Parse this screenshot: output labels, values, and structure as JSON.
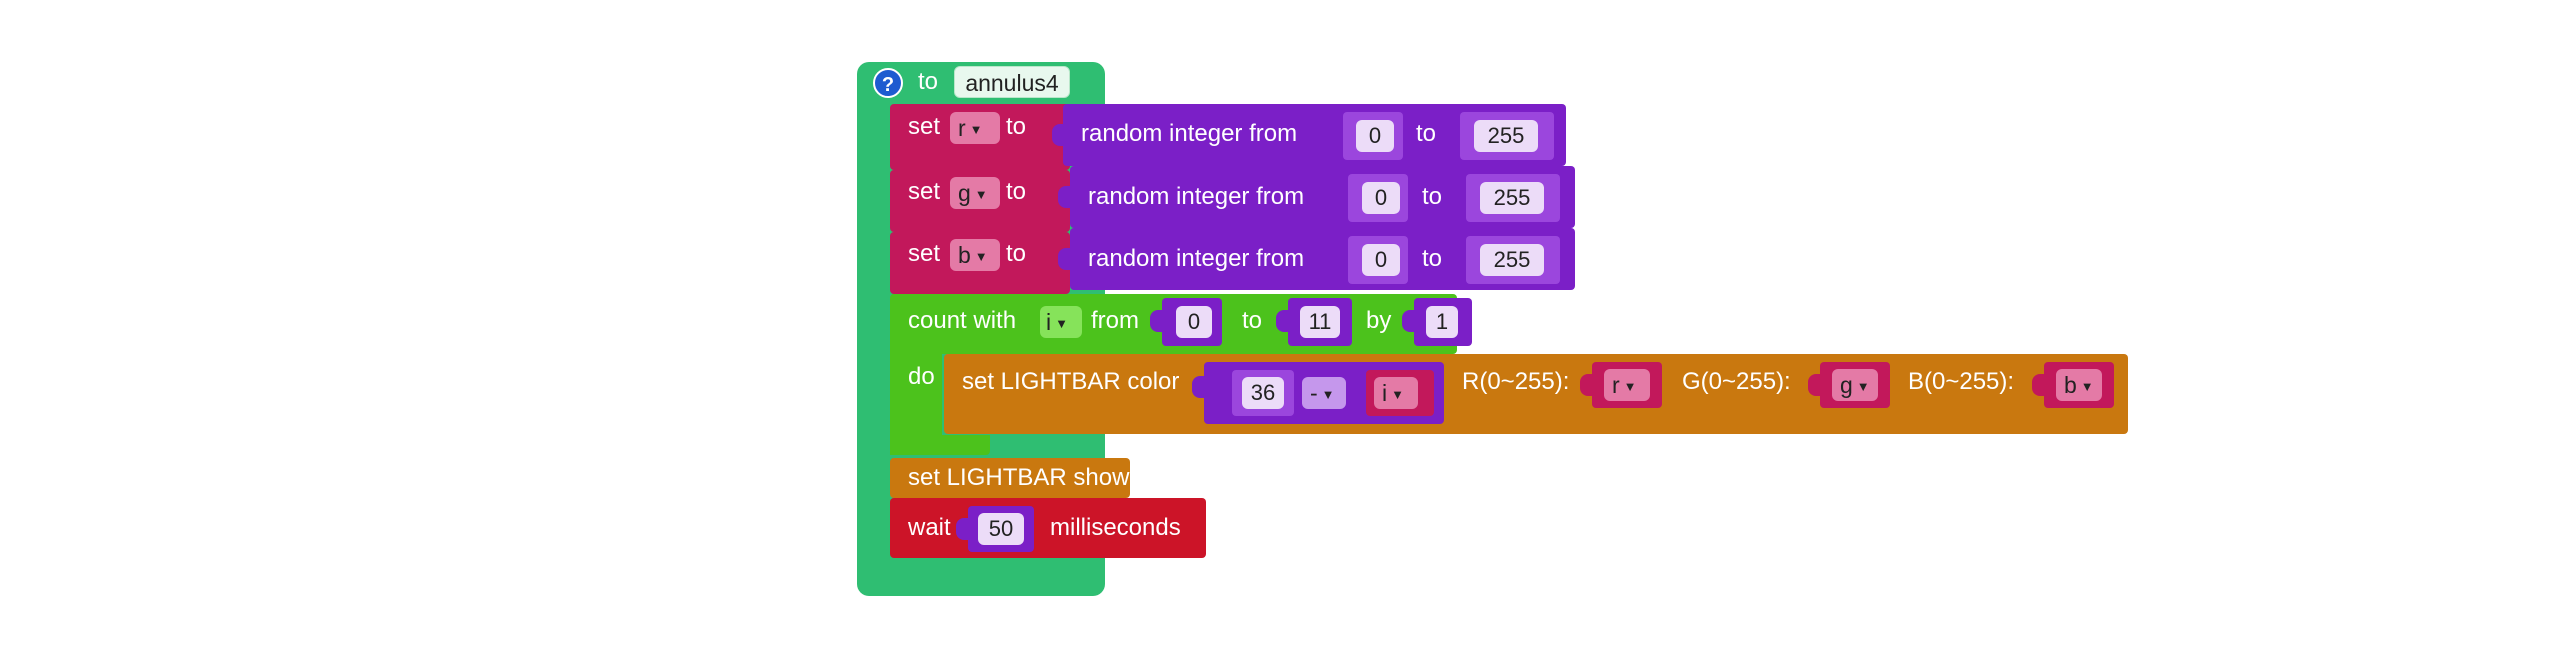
{
  "procedure": {
    "keyword": "to",
    "name": "annulus4",
    "help_icon": "question-icon"
  },
  "set_r": {
    "label": "set",
    "var": "r",
    "to": "to",
    "random": "random integer from",
    "from": "0",
    "to_word": "to",
    "max": "255"
  },
  "set_g": {
    "label": "set",
    "var": "g",
    "to": "to",
    "random": "random integer from",
    "from": "0",
    "to_word": "to",
    "max": "255"
  },
  "set_b": {
    "label": "set",
    "var": "b",
    "to": "to",
    "random": "random integer from",
    "from": "0",
    "to_word": "to",
    "max": "255"
  },
  "count": {
    "label": "count with",
    "var": "i",
    "from_word": "from",
    "from": "0",
    "to_word": "to",
    "to": "11",
    "by_word": "by",
    "by": "1",
    "do_word": "do"
  },
  "lightbar_color": {
    "label": "set LIGHTBAR color",
    "left": "36",
    "op": "-",
    "right_var": "i",
    "r_label": "R(0~255):",
    "r_var": "r",
    "g_label": "G(0~255):",
    "g_var": "g",
    "b_label": "B(0~255):",
    "b_var": "b"
  },
  "lightbar_show": {
    "label": "set LIGHTBAR show"
  },
  "wait": {
    "label": "wait",
    "value": "50",
    "unit": "milliseconds"
  },
  "colors": {
    "procedure": "#2fbe72",
    "variables": "#c2185b",
    "math": "#7b1fc7",
    "loop": "#4cc21c",
    "lightbar": "#c9780f",
    "wait": "#cc1428",
    "help": "#1e5bd0"
  }
}
